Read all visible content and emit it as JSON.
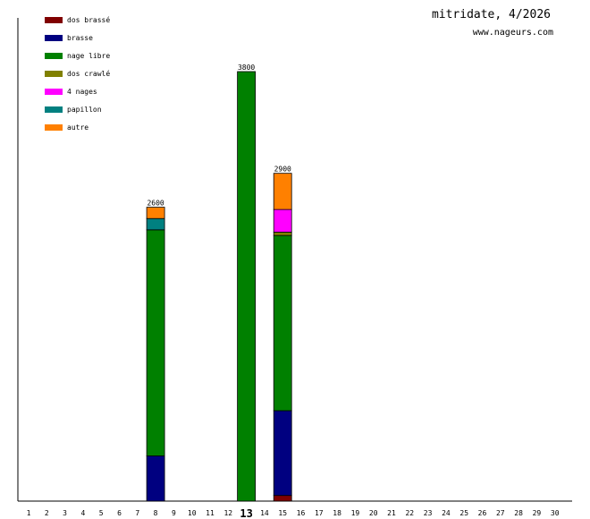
{
  "title": "mitridate, 4/2026",
  "subtitle": "www.nageurs.com",
  "chart_data": {
    "type": "bar",
    "stacked": true,
    "x": [
      1,
      2,
      3,
      4,
      5,
      6,
      7,
      8,
      9,
      10,
      11,
      12,
      13,
      14,
      15,
      16,
      17,
      18,
      19,
      20,
      21,
      22,
      23,
      24,
      25,
      26,
      27,
      28,
      29,
      30
    ],
    "highlight_x": 13,
    "ylim": [
      0,
      3800
    ],
    "grid": false,
    "legend_position": "top-left",
    "series": [
      {
        "name": "dos brassé",
        "color": "#800000",
        "values": {
          "8": 0,
          "13": 0,
          "15": 50
        }
      },
      {
        "name": "brasse",
        "color": "#000080",
        "values": {
          "8": 400,
          "13": 0,
          "15": 750
        }
      },
      {
        "name": "nage libre",
        "color": "#008000",
        "values": {
          "8": 2000,
          "13": 3800,
          "15": 1550
        }
      },
      {
        "name": "dos crawlé",
        "color": "#808000",
        "values": {
          "8": 0,
          "13": 0,
          "15": 30
        }
      },
      {
        "name": "4 nages",
        "color": "#ff00ff",
        "values": {
          "8": 0,
          "13": 0,
          "15": 200
        }
      },
      {
        "name": "papillon",
        "color": "#008080",
        "values": {
          "8": 100,
          "13": 0,
          "15": 0
        }
      },
      {
        "name": "autre",
        "color": "#ff8000",
        "values": {
          "8": 100,
          "13": 0,
          "15": 320
        }
      }
    ],
    "totals": {
      "8": 2600,
      "13": 3800,
      "15": 2900
    }
  }
}
